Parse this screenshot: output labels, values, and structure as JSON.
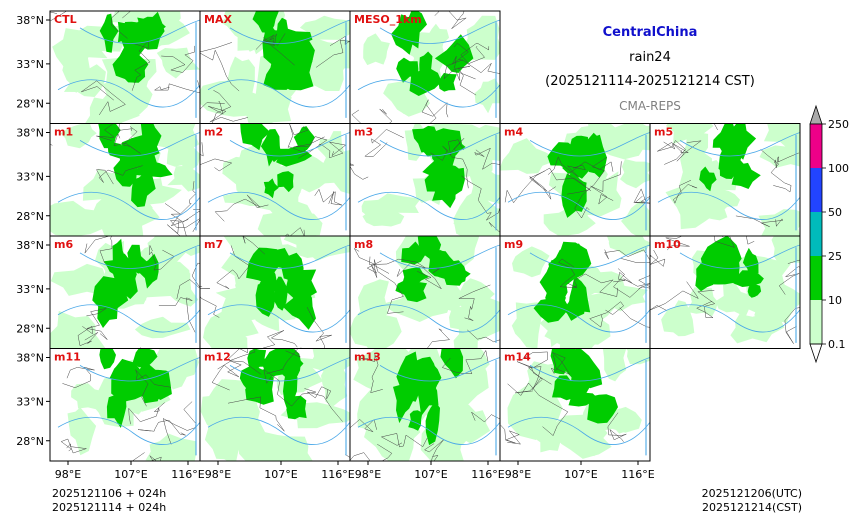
{
  "title": {
    "region": "CentralChina",
    "variable": "rain24",
    "period": "(2025121114-2025121214 CST)",
    "model": "CMA-REPS"
  },
  "panels": [
    {
      "label": "CTL",
      "coverage": 0.62
    },
    {
      "label": "MAX",
      "coverage": 0.7
    },
    {
      "label": "MESO_1km",
      "coverage": 0.45
    },
    {
      "label": "m1",
      "coverage": 0.6
    },
    {
      "label": "m2",
      "coverage": 0.58
    },
    {
      "label": "m3",
      "coverage": 0.62
    },
    {
      "label": "m4",
      "coverage": 0.6
    },
    {
      "label": "m5",
      "coverage": 0.52
    },
    {
      "label": "m6",
      "coverage": 0.6
    },
    {
      "label": "m7",
      "coverage": 0.62
    },
    {
      "label": "m8",
      "coverage": 0.64
    },
    {
      "label": "m9",
      "coverage": 0.58
    },
    {
      "label": "m10",
      "coverage": 0.55
    },
    {
      "label": "m11",
      "coverage": 0.58
    },
    {
      "label": "m12",
      "coverage": 0.66
    },
    {
      "label": "m13",
      "coverage": 0.7
    },
    {
      "label": "m14",
      "coverage": 0.56
    }
  ],
  "axes": {
    "lat_ticks": [
      "38°N",
      "33°N",
      "28°N"
    ],
    "lon_ticks": [
      "98°E",
      "107°E",
      "116°E"
    ]
  },
  "colorbar": {
    "levels": [
      "0.1",
      "10",
      "25",
      "50",
      "100",
      "250"
    ],
    "colors": [
      "#ccffcc",
      "#00cc00",
      "#00bbbb",
      "#2244ff",
      "#ee0088"
    ],
    "over_color": "#aaaaaa",
    "under_color": "#ffffff"
  },
  "colors": {
    "light_rain": "#ccffcc",
    "moderate_rain": "#00cc00",
    "river": "#4aa8e8",
    "boundary": "#444444"
  },
  "footer": {
    "init_line1": "2025121106  +  024h",
    "init_line2": "2025121114  +  024h",
    "valid_utc": "2025121206(UTC)",
    "valid_cst": "2025121214(CST)"
  }
}
